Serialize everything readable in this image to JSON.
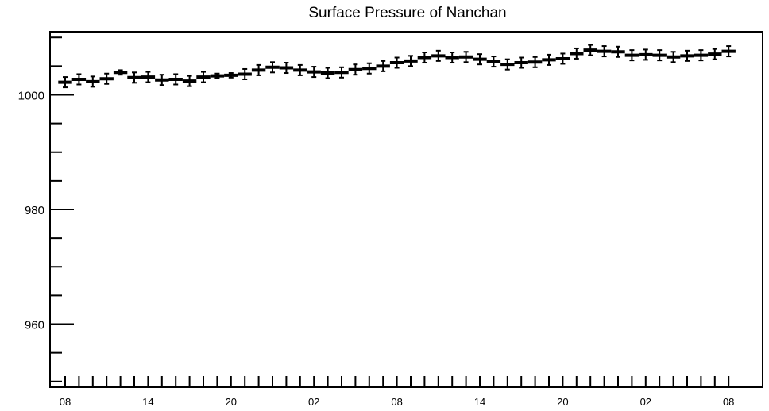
{
  "chart_data": {
    "type": "scatter",
    "title": "Surface Pressure of Nanchan",
    "xlabel": "",
    "ylabel": "",
    "ylim": [
      949,
      1011
    ],
    "y_ticks": [
      960,
      980,
      1000
    ],
    "x_tick_labels": [
      {
        "index": 0,
        "label": "08"
      },
      {
        "index": 6,
        "label": "14"
      },
      {
        "index": 12,
        "label": "20"
      },
      {
        "index": 18,
        "label": "02"
      },
      {
        "index": 24,
        "label": "08"
      },
      {
        "index": 30,
        "label": "14"
      },
      {
        "index": 36,
        "label": "20"
      },
      {
        "index": 42,
        "label": "02"
      },
      {
        "index": 48,
        "label": "08"
      }
    ],
    "grid": false,
    "x": [
      0,
      1,
      2,
      3,
      4,
      5,
      6,
      7,
      8,
      9,
      10,
      11,
      12,
      13,
      14,
      15,
      16,
      17,
      18,
      19,
      20,
      21,
      22,
      23,
      24,
      25,
      26,
      27,
      28,
      29,
      30,
      31,
      32,
      33,
      34,
      35,
      36,
      37,
      38,
      39,
      40,
      41,
      42,
      43,
      44,
      45,
      46,
      47,
      48
    ],
    "values": [
      1002.2,
      1002.7,
      1002.3,
      1002.8,
      1003.9,
      1003.0,
      1003.1,
      1002.6,
      1002.7,
      1002.4,
      1003.1,
      1003.3,
      1003.4,
      1003.6,
      1004.3,
      1004.8,
      1004.7,
      1004.3,
      1004.0,
      1003.8,
      1003.9,
      1004.4,
      1004.6,
      1005.0,
      1005.6,
      1005.9,
      1006.5,
      1006.8,
      1006.5,
      1006.6,
      1006.2,
      1005.8,
      1005.3,
      1005.6,
      1005.7,
      1006.1,
      1006.3,
      1007.2,
      1007.8,
      1007.6,
      1007.5,
      1006.9,
      1007.0,
      1006.9,
      1006.6,
      1006.8,
      1006.9,
      1007.1,
      1007.6
    ],
    "errors": [
      0.9,
      0.9,
      0.9,
      0.9,
      0.4,
      0.9,
      0.9,
      0.9,
      0.9,
      0.9,
      0.9,
      0.4,
      0.4,
      0.9,
      0.9,
      0.9,
      0.9,
      0.9,
      0.9,
      0.9,
      0.9,
      0.9,
      0.9,
      0.9,
      0.9,
      0.9,
      0.9,
      0.9,
      0.9,
      0.9,
      0.9,
      0.9,
      0.9,
      0.9,
      0.9,
      0.9,
      0.9,
      0.9,
      0.9,
      0.9,
      0.9,
      0.9,
      0.9,
      0.9,
      0.9,
      0.9,
      0.9,
      0.9,
      0.9
    ]
  }
}
